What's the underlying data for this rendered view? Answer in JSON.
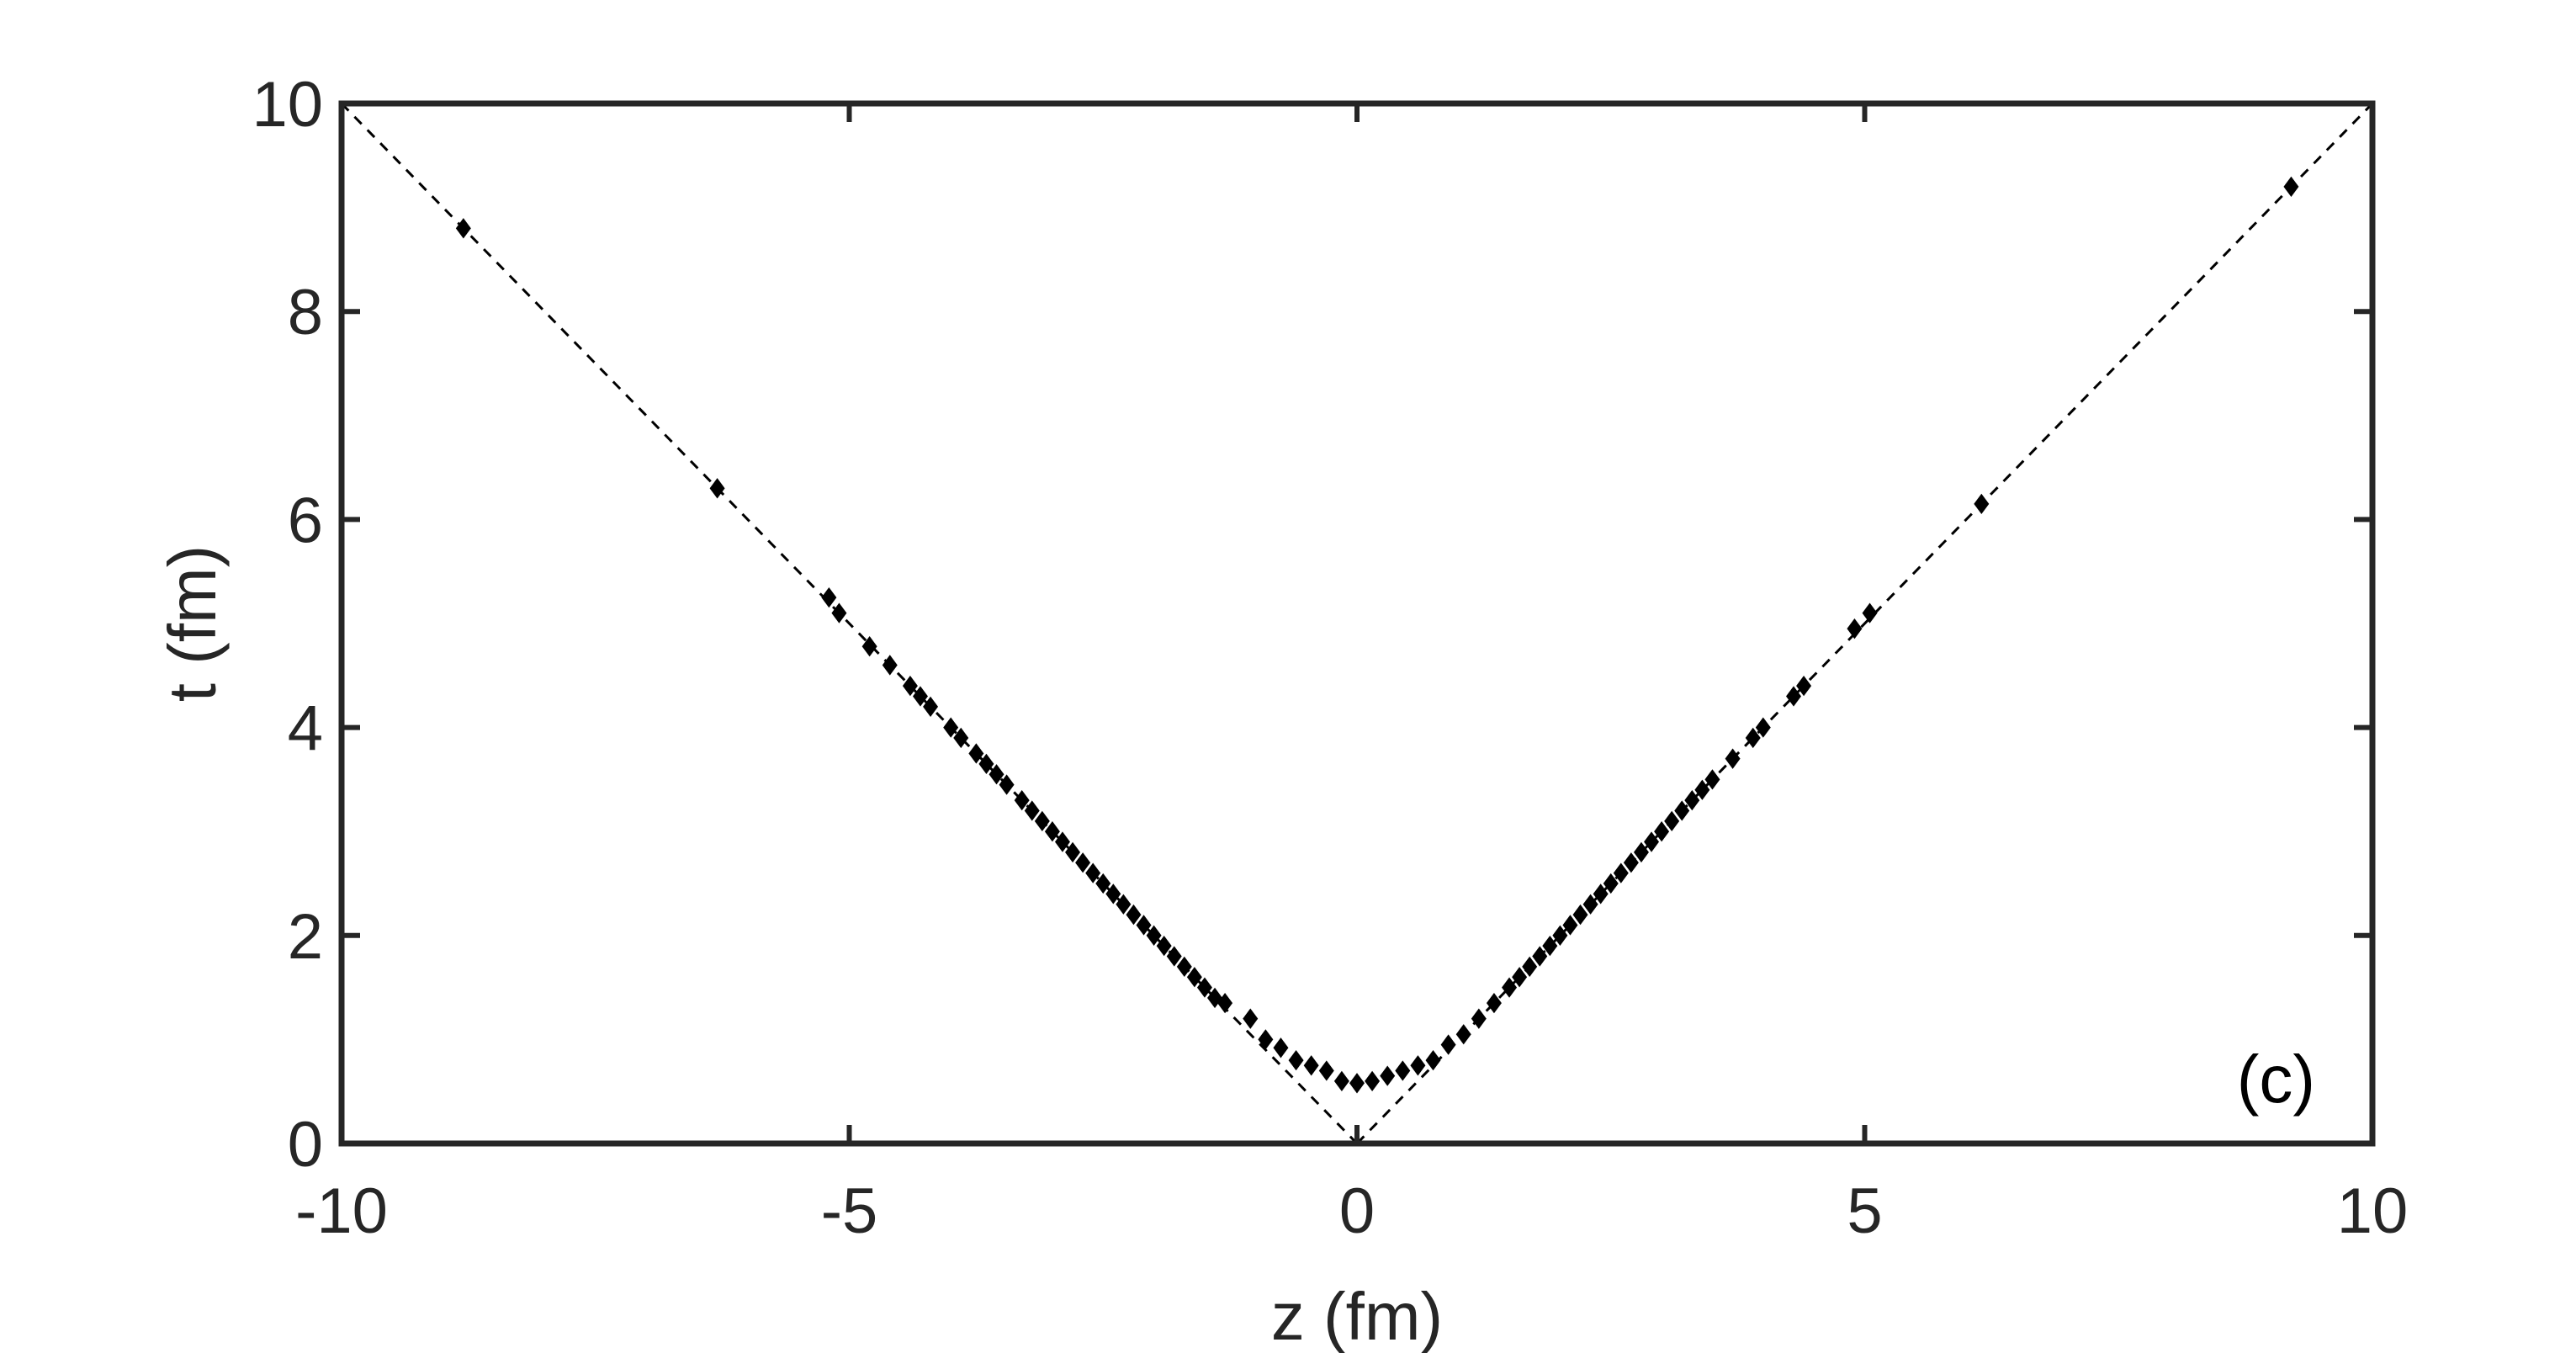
{
  "chart_data": {
    "type": "scatter",
    "xlabel": "z (fm)",
    "ylabel": "t (fm)",
    "xlim": [
      -10,
      10
    ],
    "ylim": [
      0,
      10
    ],
    "xticks": [
      {
        "value": -10,
        "label": "-10"
      },
      {
        "value": -5,
        "label": "-5"
      },
      {
        "value": 0,
        "label": "0"
      },
      {
        "value": 5,
        "label": "5"
      },
      {
        "value": 10,
        "label": "10"
      }
    ],
    "yticks": [
      {
        "value": 0,
        "label": "0"
      },
      {
        "value": 2,
        "label": "2"
      },
      {
        "value": 4,
        "label": "4"
      },
      {
        "value": 6,
        "label": "6"
      },
      {
        "value": 8,
        "label": "8"
      },
      {
        "value": 10,
        "label": "10"
      }
    ],
    "grid": false,
    "annotation": "(c)",
    "reference_lines": [
      {
        "name": "t = -z",
        "x": [
          -10,
          0
        ],
        "y": [
          10,
          0
        ]
      },
      {
        "name": "t = z",
        "x": [
          0,
          10
        ],
        "y": [
          0,
          10
        ]
      }
    ],
    "colors": {
      "points": "#000000",
      "axes": "#262626",
      "reference": "#000000"
    },
    "series": [
      {
        "x": [
          -8.8,
          -6.3,
          -5.2,
          -5.1,
          -4.8,
          -4.6,
          -4.4,
          -4.3,
          -4.2,
          -4.0,
          -3.9,
          -3.75,
          -3.65,
          -3.55,
          -3.45,
          -3.3,
          -3.2,
          -3.1,
          -3.0,
          -2.9,
          -2.8,
          -2.7,
          -2.6,
          -2.5,
          -2.4,
          -2.3,
          -2.2,
          -2.1,
          -2.0,
          -1.9,
          -1.8,
          -1.7,
          -1.6,
          -1.5,
          -1.4,
          -1.3,
          -1.05,
          -0.9,
          -0.75,
          -0.6,
          -0.45,
          -0.3,
          -0.15,
          0.0,
          0.15,
          0.3,
          0.45,
          0.6,
          0.75,
          0.9,
          1.05,
          1.2,
          1.35,
          1.5,
          1.6,
          1.7,
          1.8,
          1.9,
          2.0,
          2.1,
          2.2,
          2.3,
          2.4,
          2.5,
          2.6,
          2.7,
          2.8,
          2.9,
          3.0,
          3.1,
          3.2,
          3.3,
          3.4,
          3.5,
          3.7,
          3.9,
          4.0,
          4.3,
          4.4,
          4.9,
          5.05,
          6.15,
          9.2
        ],
        "y": [
          8.8,
          6.3,
          5.25,
          5.1,
          4.78,
          4.6,
          4.4,
          4.3,
          4.2,
          4.0,
          3.9,
          3.75,
          3.65,
          3.55,
          3.45,
          3.3,
          3.2,
          3.1,
          3.0,
          2.9,
          2.8,
          2.7,
          2.6,
          2.5,
          2.4,
          2.3,
          2.2,
          2.1,
          2.0,
          1.9,
          1.8,
          1.7,
          1.6,
          1.5,
          1.4,
          1.35,
          1.2,
          1.0,
          0.92,
          0.8,
          0.75,
          0.7,
          0.6,
          0.58,
          0.6,
          0.65,
          0.7,
          0.75,
          0.8,
          0.95,
          1.05,
          1.2,
          1.35,
          1.5,
          1.6,
          1.7,
          1.8,
          1.9,
          2.0,
          2.1,
          2.2,
          2.3,
          2.4,
          2.5,
          2.6,
          2.7,
          2.8,
          2.9,
          3.0,
          3.1,
          3.2,
          3.3,
          3.4,
          3.5,
          3.7,
          3.9,
          4.0,
          4.3,
          4.4,
          4.95,
          5.1,
          6.15,
          9.2
        ]
      }
    ]
  }
}
